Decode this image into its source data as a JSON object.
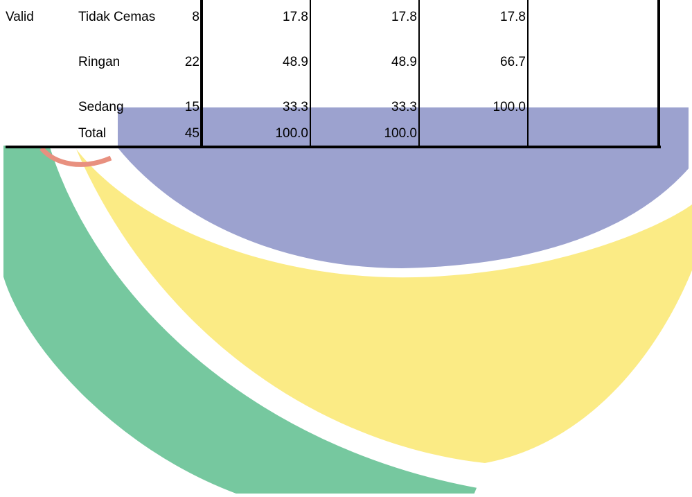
{
  "table": {
    "rows": [
      [
        "Valid",
        "Tidak Cemas",
        "8",
        "17.8",
        "17.8",
        "17.8"
      ],
      [
        null,
        "Ringan",
        "22",
        "48.9",
        "48.9",
        "66.7"
      ],
      [
        null,
        "Sedang",
        "15",
        "33.3",
        "33.3",
        "100.0"
      ],
      [
        null,
        "Total",
        "45",
        "100.0",
        "100.0",
        null
      ]
    ]
  }
}
